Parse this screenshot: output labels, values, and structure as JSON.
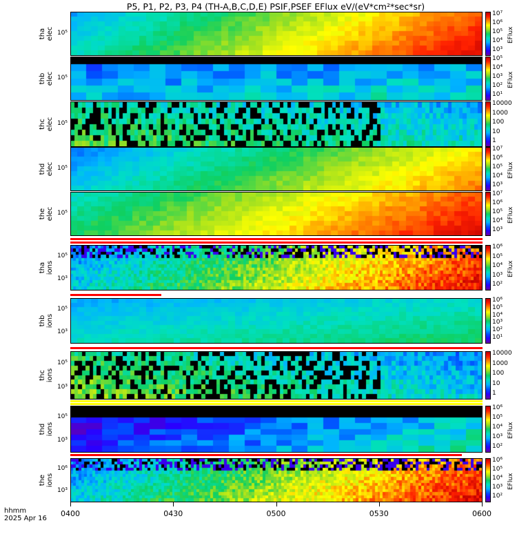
{
  "title": "P5, P1, P2, P3, P4 (TH-A,B,C,D,E) PSIF,PSEF EFlux eV/(eV*cm²*sec*sr)",
  "footer": {
    "line1": "hhmm",
    "line2": "2025 Apr 16"
  },
  "colors": {
    "colormap": [
      "#6a00a8",
      "#2a00ff",
      "#0050ff",
      "#00b4ff",
      "#00e0c0",
      "#10d060",
      "#a0e020",
      "#ffff00",
      "#ff9000",
      "#ff2000",
      "#c00000"
    ],
    "strip_red": "#ff0000",
    "strip_yellow": "#ffff00",
    "fill_black": "#000000"
  },
  "chart_data": {
    "type": "heatmap",
    "x_ticks": [
      "0400",
      "0430",
      "0500",
      "0530",
      "0600"
    ],
    "x_range_minutes": [
      0,
      120
    ],
    "panels": [
      {
        "id": "tha-elec",
        "ylabel": [
          "tha",
          "elec"
        ],
        "yticks": [
          "10⁵"
        ],
        "cb_ticks": [
          "10⁷",
          "10⁶",
          "10⁵",
          "10⁴",
          "10³"
        ],
        "cb_unit": "EFlux",
        "texture": "smooth",
        "level_start": 0.35,
        "level_end": 0.92,
        "bands": 9
      },
      {
        "id": "thb-elec",
        "ylabel": [
          "thb",
          "elec"
        ],
        "yticks": [
          "10⁵"
        ],
        "cb_ticks": [
          "10⁵",
          "10⁴",
          "10³",
          "10²",
          "10¹"
        ],
        "cb_unit": "EFlux",
        "texture": "blocky",
        "level_start": 0.28,
        "level_end": 0.35,
        "bands": 6
      },
      {
        "id": "thc-elec",
        "ylabel": [
          "thc",
          "elec"
        ],
        "yticks": [
          "10⁵"
        ],
        "cb_ticks": [
          "10000",
          "1000",
          "100",
          "10",
          "1"
        ],
        "cb_unit": "",
        "texture": "speckle",
        "level_start": 0.5,
        "level_end": 0.35,
        "bands": 8
      },
      {
        "id": "thd-elec",
        "ylabel": [
          "thd",
          "elec"
        ],
        "yticks": [
          "10⁵"
        ],
        "cb_ticks": [
          "10⁷",
          "10⁶",
          "10⁵",
          "10⁴",
          "10³"
        ],
        "cb_unit": "EFlux",
        "texture": "smooth",
        "level_start": 0.3,
        "level_end": 0.78,
        "bands": 9
      },
      {
        "id": "the-elec",
        "ylabel": [
          "the",
          "elec"
        ],
        "yticks": [
          "10⁵"
        ],
        "cb_ticks": [
          "10⁷",
          "10⁶",
          "10⁵",
          "10⁴",
          "10³"
        ],
        "cb_unit": "EFlux",
        "texture": "smooth",
        "level_start": 0.45,
        "level_end": 0.92,
        "bands": 9
      },
      {
        "id": "tha-ions",
        "ylabel": [
          "tha",
          "ions"
        ],
        "yticks": [
          "10⁵",
          "10³"
        ],
        "cb_ticks": [
          "10⁶",
          "10⁵",
          "10⁴",
          "10³",
          "10²"
        ],
        "cb_unit": "EFlux",
        "texture": "ions",
        "level_start": 0.3,
        "level_end": 0.9,
        "bands": 14
      },
      {
        "id": "thb-ions",
        "ylabel": [
          "thb",
          "ions"
        ],
        "yticks": [
          "10⁵",
          "10³"
        ],
        "cb_ticks": [
          "10⁶",
          "10⁵",
          "10⁴",
          "10³",
          "10²",
          "10¹"
        ],
        "cb_unit": "",
        "texture": "smooth",
        "level_start": 0.35,
        "level_end": 0.45,
        "bands": 10
      },
      {
        "id": "thc-ions",
        "ylabel": [
          "thc",
          "ions"
        ],
        "yticks": [
          "10⁵",
          "10³"
        ],
        "cb_ticks": [
          "10000",
          "1000",
          "100",
          "10",
          "1"
        ],
        "cb_unit": "",
        "texture": "speckle",
        "level_start": 0.55,
        "level_end": 0.3,
        "bands": 10
      },
      {
        "id": "thd-ions",
        "ylabel": [
          "thd",
          "ions"
        ],
        "yticks": [
          "10⁵",
          "10³"
        ],
        "cb_ticks": [
          "10⁶",
          "10⁵",
          "10⁴",
          "10³",
          "10²"
        ],
        "cb_unit": "EFlux",
        "texture": "blocky",
        "level_start": 0.1,
        "level_end": 0.4,
        "bands": 8
      },
      {
        "id": "the-ions",
        "ylabel": [
          "the",
          "ions"
        ],
        "yticks": [
          "10⁶",
          "10³"
        ],
        "cb_ticks": [
          "10⁶",
          "10⁵",
          "10⁴",
          "10³",
          "10²"
        ],
        "cb_unit": "EFlux",
        "texture": "ions",
        "level_start": 0.3,
        "level_end": 0.9,
        "bands": 14
      }
    ]
  }
}
